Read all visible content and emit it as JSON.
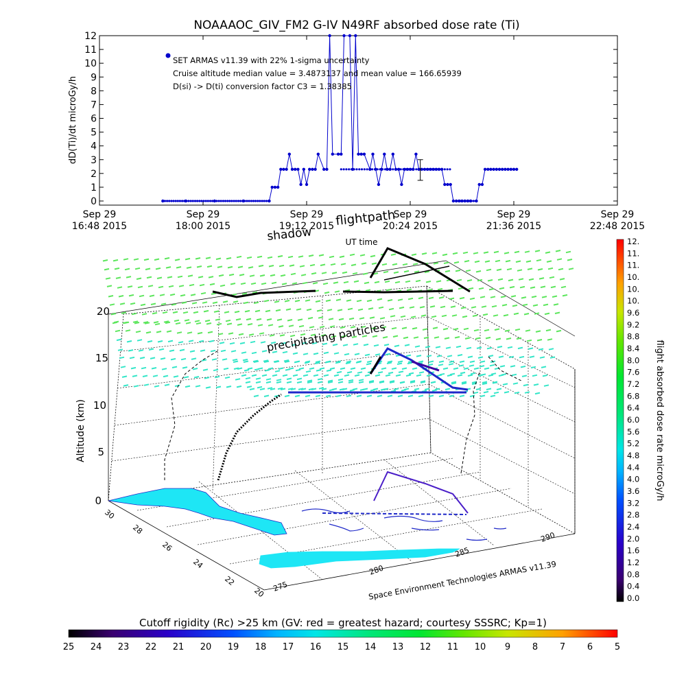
{
  "top_title": "NOAAAOC_GIV_FM2 G-IV    N49RF  absorbed dose rate (Ti)",
  "legend_lines": [
    "SET ARMAS v11.39 with 22% 1-sigma uncertainty",
    "Cruise altitude median value = 3.4873137 and mean value = 166.65939",
    "D(si) -> D(ti) conversion factor C3 = 1.38385"
  ],
  "scene_labels": {
    "flightpath": "flightpath",
    "shadow": "shadow",
    "precipitating": "precipitating particles",
    "credit": "Space Environment Technologies ARMAS v11.39",
    "z_axis_title": "Altitude (km)",
    "z_ticks": [
      "0",
      "5",
      "10",
      "15",
      "20"
    ],
    "lat_ticks": [
      "30",
      "28",
      "26",
      "24",
      "22",
      "20"
    ],
    "lon_ticks": [
      "275",
      "280",
      "285",
      "290"
    ]
  },
  "right_colorbar": {
    "title": "flight absorbed dose rate microGy/h",
    "labels": [
      "12.",
      "11.",
      "11.",
      "10.",
      "10.",
      "10.",
      "9.6",
      "9.2",
      "8.8",
      "8.4",
      "8.0",
      "7.6",
      "7.2",
      "6.8",
      "6.4",
      "6.0",
      "5.6",
      "5.2",
      "4.8",
      "4.4",
      "4.0",
      "3.6",
      "3.2",
      "2.8",
      "2.4",
      "2.0",
      "1.6",
      "1.2",
      "0.8",
      "0.4",
      "0.0"
    ]
  },
  "bottom_colorbar": {
    "title": "Cutoff rigidity (Rc) >25 km (GV: red = greatest hazard; courtesy SSSRC; Kp=1)",
    "labels": [
      "25",
      "24",
      "23",
      "22",
      "21",
      "20",
      "19",
      "18",
      "17",
      "16",
      "15",
      "14",
      "13",
      "12",
      "11",
      "10",
      "9",
      "8",
      "7",
      "6",
      "5"
    ]
  },
  "chart_data": {
    "type": "line",
    "title": "NOAAAOC_GIV_FM2 G-IV    N49RF  absorbed dose rate (Ti)",
    "xlabel": "UT time",
    "ylabel": "dD(Ti)/dt microGy/h",
    "x_range_minutes": [
      0,
      360
    ],
    "ylim": [
      0,
      12
    ],
    "yticks": [
      "0",
      "1",
      "2",
      "3",
      "4",
      "5",
      "6",
      "7",
      "8",
      "9",
      "10",
      "11",
      "12"
    ],
    "xticks": [
      {
        "line1": "Sep 29",
        "line2": "16:48 2015",
        "t": 0
      },
      {
        "line1": "Sep 29",
        "line2": "18:00 2015",
        "t": 72
      },
      {
        "line1": "Sep 29",
        "line2": "19:12 2015",
        "t": 144
      },
      {
        "line1": "Sep 29",
        "line2": "20:24 2015",
        "t": 216
      },
      {
        "line1": "Sep 29",
        "line2": "21:36 2015",
        "t": 288
      },
      {
        "line1": "Sep 29",
        "line2": "22:48 2015",
        "t": 360
      }
    ],
    "series_color": "#0000cc",
    "series": [
      {
        "name": "SET ARMAS v11.39 with 22% 1-sigma uncertainty",
        "t": [
          44,
          60,
          80,
          100,
          118,
          120,
          122,
          124,
          126,
          128,
          130,
          132,
          134,
          136,
          138,
          140,
          142,
          144,
          146,
          148,
          150,
          152,
          156,
          158,
          160,
          162,
          166,
          168,
          170,
          174,
          176,
          178,
          180,
          182,
          184,
          188,
          190,
          192,
          194,
          196,
          198,
          200,
          202,
          204,
          206,
          208,
          210,
          212,
          214,
          216,
          218,
          220,
          222,
          224,
          226,
          228,
          230,
          232,
          234,
          236,
          238,
          240,
          242,
          244,
          246,
          248,
          250,
          252,
          254,
          256,
          258,
          262,
          264,
          266,
          268,
          270,
          272,
          274,
          276,
          278,
          280,
          282,
          284,
          286,
          288,
          290
        ],
        "y": [
          0,
          0,
          0,
          0,
          0,
          1,
          1,
          1,
          2.3,
          2.3,
          2.3,
          3.4,
          2.3,
          2.3,
          2.3,
          1.2,
          2.3,
          1.2,
          2.3,
          2.3,
          2.3,
          3.4,
          2.3,
          2.3,
          12,
          3.4,
          3.4,
          3.4,
          12,
          12,
          2.3,
          12,
          3.4,
          3.4,
          3.4,
          2.3,
          3.4,
          2.3,
          1.2,
          2.3,
          3.4,
          2.3,
          2.3,
          3.4,
          2.3,
          2.3,
          1.2,
          2.3,
          2.3,
          2.3,
          2.3,
          3.4,
          2.3,
          2.3,
          2.3,
          2.3,
          2.3,
          2.3,
          2.3,
          2.3,
          2.3,
          1.2,
          1.2,
          1.2,
          0,
          0,
          0,
          0,
          0,
          0,
          0,
          0,
          1.2,
          1.2,
          2.3,
          2.3,
          2.3,
          2.3,
          2.3,
          2.3,
          2.3,
          2.3,
          2.3,
          2.3,
          2.3,
          2.3
        ]
      }
    ],
    "error_bar": {
      "t": 223,
      "center": 2.3,
      "low": 1.5,
      "high": 3.0
    }
  },
  "palette": {
    "axis": "#000000",
    "mesh_green": "#5ce65c",
    "mesh_cyan": "#33e6c8",
    "land_cyan": "#1ee6f5",
    "track_blue": "#1e28c8",
    "dose_bar_top": "#ff0000",
    "dose_bar_bottom": "#000000"
  }
}
